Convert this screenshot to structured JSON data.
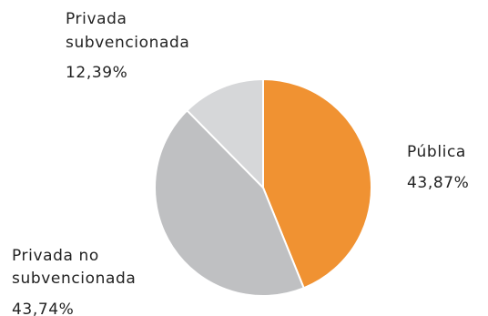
{
  "chart_data": {
    "type": "pie",
    "slices": [
      {
        "name": "Pública",
        "value": 43.87,
        "label": "43,87%",
        "color": "#F09232"
      },
      {
        "name": "Privada no subvencionada",
        "value": 43.74,
        "label": "43,74%",
        "color": "#BFC0C2"
      },
      {
        "name": "Privada subvencionada",
        "value": 12.39,
        "label": "12,39%",
        "color": "#D6D7D9"
      }
    ],
    "labels": {
      "publica": {
        "line1": "Pública",
        "pct": "43,87%"
      },
      "privada_no": {
        "line1": "Privada no",
        "line2": "subvencionada",
        "pct": "43,74%"
      },
      "privada_sub": {
        "line1": "Privada",
        "line2": "subvencionada",
        "pct": "12,39%"
      }
    }
  }
}
